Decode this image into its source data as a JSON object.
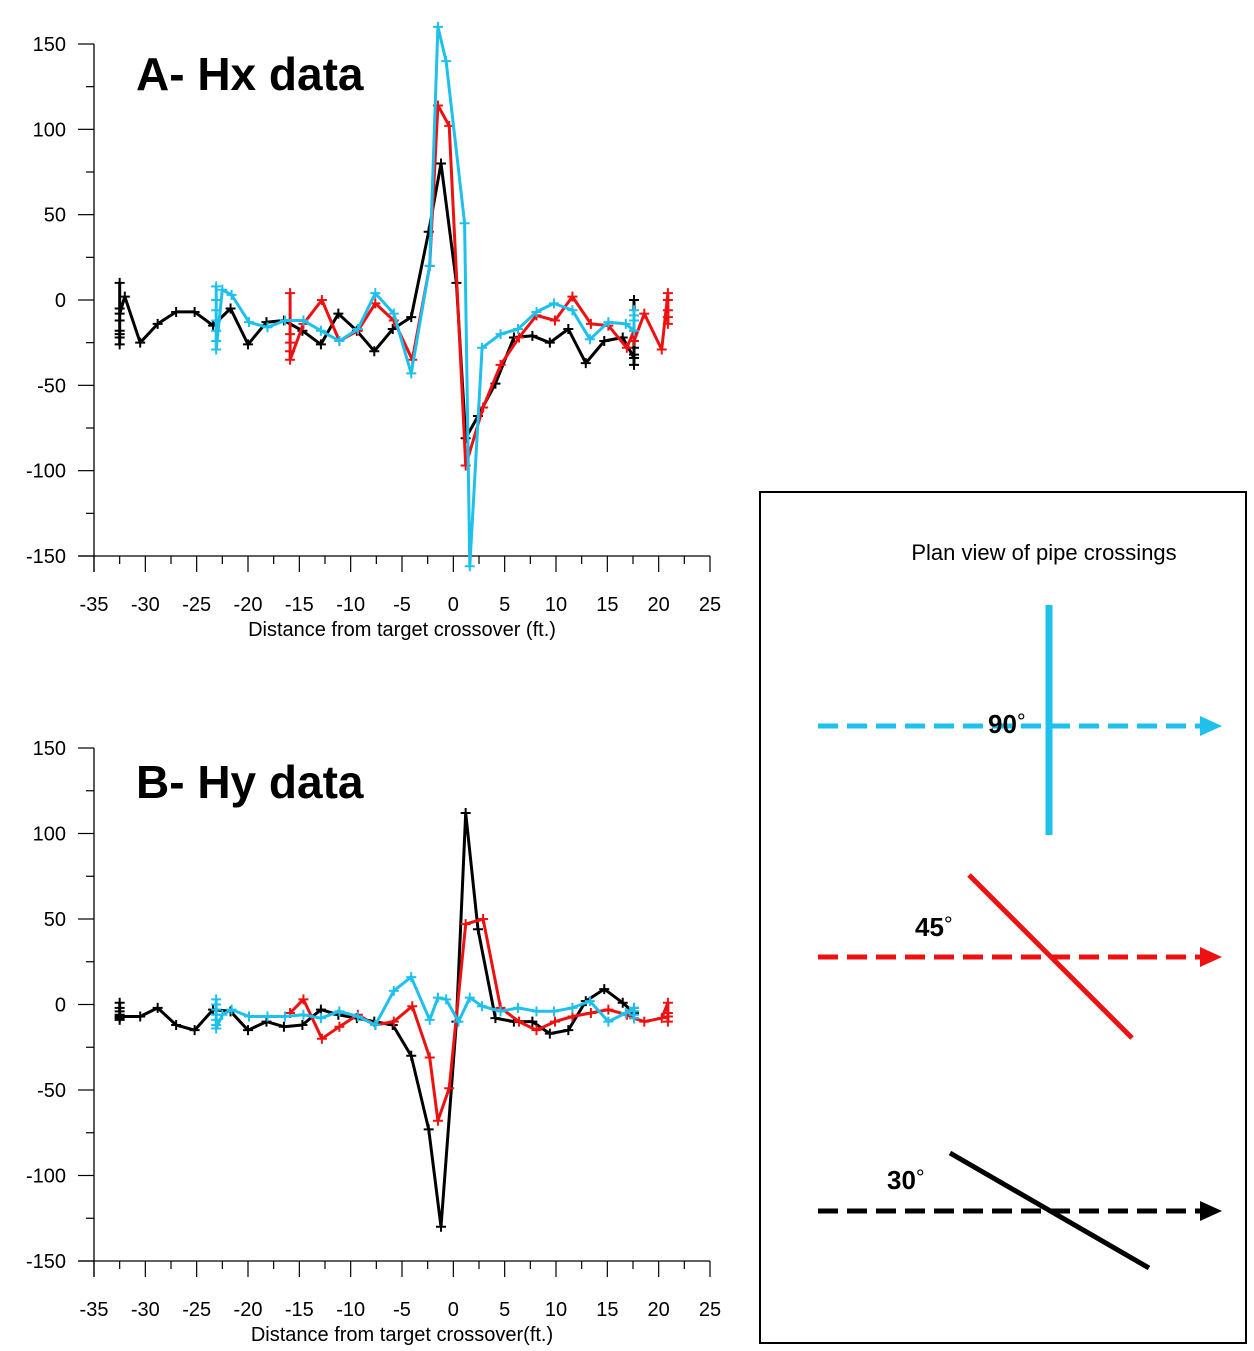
{
  "colors": {
    "90": "#1ec0ec",
    "45": "#ee1111",
    "30": "#000000"
  },
  "chart_data": [
    {
      "type": "line",
      "title": "A- Hx data",
      "xlabel": "Distance from target crossover (ft.)",
      "ylabel": "",
      "xlim": [
        -35,
        25
      ],
      "ylim": [
        -150,
        150
      ],
      "xticks": [
        -35,
        -30,
        -25,
        -20,
        -15,
        -10,
        -5,
        0,
        5,
        10,
        15,
        20,
        25
      ],
      "yticks": [
        150,
        100,
        50,
        0,
        -50,
        -100,
        -150
      ],
      "series": [
        {
          "color_key": "30",
          "x": [
            -32.5,
            -32.5,
            -32.5,
            -32.5,
            -32.5,
            -32.5,
            -32.5,
            -32.5,
            -32,
            -30.5,
            -28.8,
            -27,
            -25.2,
            -23.4,
            -21.7,
            -20,
            -18.2,
            -16.5,
            -14.7,
            -12.9,
            -11.2,
            -9.4,
            -7.7,
            -5.9,
            -4.1,
            -2.4,
            -1.2,
            0.3,
            1.2,
            2.4,
            4.1,
            5.9,
            7.7,
            9.4,
            11.2,
            12.9,
            14.7,
            16.5,
            17.6,
            17.6,
            17.6,
            17.6,
            17.6
          ],
          "y": [
            10,
            -5,
            -12,
            -18,
            -22,
            -26,
            -20,
            -8,
            2,
            -25,
            -14,
            -7,
            -7,
            -15,
            -5,
            -26,
            -13,
            -12,
            -18,
            -26,
            -8,
            -18,
            -30,
            -17,
            -10,
            40,
            80,
            10,
            -81,
            -68,
            -49,
            -22,
            -21,
            -25,
            -17,
            -37,
            -24,
            -22,
            -34,
            -28,
            -38,
            -32,
            0
          ]
        },
        {
          "color_key": "45",
          "x": [
            -15.9,
            -15.9,
            -15.9,
            -15.9,
            -15.9,
            -15.9,
            -14.6,
            -12.8,
            -11.1,
            -9.3,
            -7.6,
            -5.8,
            -4,
            -2.3,
            -1.5,
            -0.4,
            1.2,
            2.9,
            4.6,
            6.4,
            8.1,
            9.9,
            11.6,
            13.4,
            15.1,
            16.9,
            17.6,
            17.6,
            18.6,
            20.3,
            20.9,
            20.9,
            20.9,
            20.9,
            20.9
          ],
          "y": [
            4,
            -12,
            -20,
            -25,
            -30,
            -35,
            -14,
            0,
            -24,
            -18,
            -2,
            -12,
            -35,
            20,
            114,
            102,
            -97,
            -63,
            -38,
            -22,
            -9,
            -12,
            2,
            -14,
            -15,
            -28,
            -18,
            -24,
            -8,
            -29,
            4,
            0,
            -6,
            -10,
            -14
          ]
        },
        {
          "color_key": "90",
          "x": [
            -23.1,
            -23.1,
            -23.1,
            -23.1,
            -23.1,
            -23.1,
            -23.1,
            -22.5,
            -21.6,
            -19.9,
            -18.1,
            -16.4,
            -14.6,
            -12.9,
            -11.1,
            -9.3,
            -7.6,
            -5.8,
            -4.1,
            -2.3,
            -1.5,
            -0.7,
            1.1,
            1.6,
            2.8,
            4.6,
            6.3,
            8.1,
            9.8,
            11.6,
            13.3,
            15.1,
            16.8,
            17.6,
            17.6,
            17.6,
            17.6
          ],
          "y": [
            8,
            0,
            -6,
            -12,
            -18,
            -24,
            -29,
            6,
            3,
            -13,
            -16,
            -12,
            -12,
            -18,
            -24,
            -17,
            4,
            -8,
            -43,
            20,
            160,
            140,
            45,
            -156,
            -28,
            -20,
            -17,
            -7,
            -2,
            -6,
            -23,
            -13,
            -14,
            -18,
            -12,
            -9,
            -6
          ]
        }
      ]
    },
    {
      "type": "line",
      "title": "B- Hy data",
      "xlabel": "Distance from target crossover(ft.)",
      "ylabel": "",
      "xlim": [
        -35,
        25
      ],
      "ylim": [
        -150,
        150
      ],
      "xticks": [
        -35,
        -30,
        -25,
        -20,
        -15,
        -10,
        -5,
        0,
        5,
        10,
        15,
        20,
        25
      ],
      "yticks": [
        150,
        100,
        50,
        0,
        -50,
        -100,
        -150
      ],
      "series": [
        {
          "color_key": "30",
          "x": [
            -32.5,
            -32.5,
            -32.5,
            -32.5,
            -32.5,
            -32.5,
            -32.5,
            -32.5,
            -30.5,
            -28.8,
            -27,
            -25.2,
            -23.4,
            -21.7,
            -20,
            -18.2,
            -16.5,
            -14.7,
            -12.9,
            -11.2,
            -9.4,
            -7.7,
            -5.9,
            -4.1,
            -2.4,
            -1.2,
            0.3,
            1.2,
            2.4,
            4.1,
            5.9,
            7.7,
            9.4,
            11.2,
            12.9,
            14.7,
            16.5,
            17.6,
            17.6,
            17.6,
            17.6
          ],
          "y": [
            1,
            -2,
            -4,
            -6,
            -7,
            -8,
            -9,
            -7,
            -7,
            -2,
            -12,
            -15,
            -3,
            -4,
            -15,
            -10,
            -13,
            -12,
            -3,
            -6,
            -8,
            -10,
            -12,
            -30,
            -73,
            -130,
            -10,
            112,
            44,
            -8,
            -10,
            -10,
            -17,
            -15,
            2,
            9,
            1,
            -5,
            -8,
            -4,
            -2
          ]
        },
        {
          "color_key": "45",
          "x": [
            -15.9,
            -14.6,
            -12.8,
            -11.1,
            -9.3,
            -7.6,
            -5.8,
            -4,
            -2.3,
            -1.5,
            -0.4,
            1.2,
            2.9,
            4.6,
            6.4,
            8.1,
            9.9,
            11.6,
            13.4,
            15.1,
            16.9,
            17.6,
            18.6,
            20.3,
            20.9,
            20.9,
            20.9,
            20.9
          ],
          "y": [
            -5,
            3,
            -20,
            -13,
            -6,
            -12,
            -10,
            -1,
            -31,
            -68,
            -49,
            47,
            50,
            -2,
            -10,
            -15,
            -10,
            -7,
            -5,
            -3,
            -6,
            -8,
            -10,
            -8,
            1,
            -5,
            -7,
            -10
          ]
        },
        {
          "color_key": "90",
          "x": [
            -23.1,
            -23.1,
            -23.1,
            -23.1,
            -23.1,
            -23.1,
            -23.1,
            -22.5,
            -21.6,
            -19.9,
            -18.1,
            -16.4,
            -14.6,
            -12.9,
            -11.1,
            -9.3,
            -7.6,
            -5.8,
            -4.1,
            -2.3,
            -1.5,
            -0.7,
            0.5,
            1.6,
            2.8,
            4.6,
            6.3,
            8.1,
            9.8,
            11.6,
            13.3,
            15.1,
            16.8,
            17.6,
            17.6,
            17.6,
            17.6
          ],
          "y": [
            3,
            0,
            -3,
            -6,
            -9,
            -12,
            -14,
            -6,
            -3,
            -7,
            -7,
            -7,
            -6,
            -8,
            -4,
            -7,
            -12,
            8,
            16,
            -9,
            4,
            3,
            -10,
            4,
            -1,
            -4,
            -2,
            -4,
            -4,
            -2,
            2,
            -10,
            -5,
            -2,
            -4,
            -6,
            -8
          ]
        }
      ]
    }
  ],
  "legend": {
    "title": "Plan view of pipe crossings",
    "items": [
      {
        "label": "90",
        "degree_symbol": "°",
        "color_key": "90",
        "crossing_angle": 90
      },
      {
        "label": "45",
        "degree_symbol": "°",
        "color_key": "45",
        "crossing_angle": 45
      },
      {
        "label": "30",
        "degree_symbol": "°",
        "color_key": "30",
        "crossing_angle": 30
      }
    ]
  }
}
